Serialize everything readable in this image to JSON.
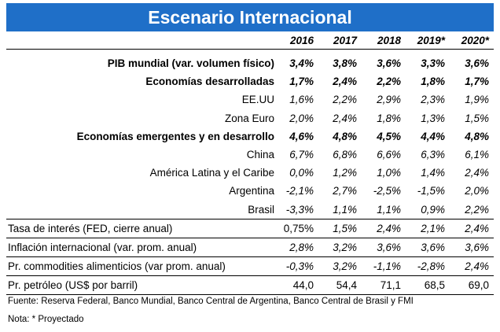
{
  "title": "Escenario Internacional",
  "years": [
    "2016",
    "2017",
    "2018",
    "2019*",
    "2020*"
  ],
  "rows": [
    {
      "label": "PIB mundial (var. volumen físico)",
      "values": [
        "3,4%",
        "3,8%",
        "3,6%",
        "3,3%",
        "3,6%"
      ]
    },
    {
      "label": "Economías desarrolladas",
      "values": [
        "1,7%",
        "2,4%",
        "2,2%",
        "1,8%",
        "1,7%"
      ]
    },
    {
      "label": "EE.UU",
      "values": [
        "1,6%",
        "2,2%",
        "2,9%",
        "2,3%",
        "1,9%"
      ]
    },
    {
      "label": "Zona Euro",
      "values": [
        "2,0%",
        "2,4%",
        "1,8%",
        "1,3%",
        "1,5%"
      ]
    },
    {
      "label": "Economías emergentes y en desarrollo",
      "values": [
        "4,6%",
        "4,8%",
        "4,5%",
        "4,4%",
        "4,8%"
      ]
    },
    {
      "label": "China",
      "values": [
        "6,7%",
        "6,8%",
        "6,6%",
        "6,3%",
        "6,1%"
      ]
    },
    {
      "label": "América Latina y el Caribe",
      "values": [
        "0,0%",
        "1,2%",
        "1,0%",
        "1,4%",
        "2,4%"
      ]
    },
    {
      "label": "Argentina",
      "values": [
        "-2,1%",
        "2,7%",
        "-2,5%",
        "-1,5%",
        "2,0%"
      ]
    },
    {
      "label": "Brasil",
      "values": [
        "-3,3%",
        "1,1%",
        "1,1%",
        "0,9%",
        "2,2%"
      ]
    },
    {
      "label": "Tasa de interés (FED, cierre anual)",
      "values": [
        "0,75%",
        "1,5%",
        "2,4%",
        "2,1%",
        "2,4%"
      ]
    },
    {
      "label": "Inflación internacional (var. prom. anual)",
      "values": [
        "2,8%",
        "3,2%",
        "3,6%",
        "3,6%",
        "3,6%"
      ]
    },
    {
      "label": "Pr. commodities alimenticios (var prom. anual)",
      "values": [
        "-0,3%",
        "3,2%",
        "-1,1%",
        "-2,8%",
        "2,4%"
      ]
    },
    {
      "label": "Pr. petróleo (US$ por barril)",
      "values": [
        "44,0",
        "54,4",
        "71,1",
        "68,5",
        "69,0"
      ]
    }
  ],
  "source": "Fuente: Reserva Federal, Banco Mundial, Banco Central de Argentina, Banco Central de Brasil  y FMI",
  "note": "Nota: * Proyectado"
}
